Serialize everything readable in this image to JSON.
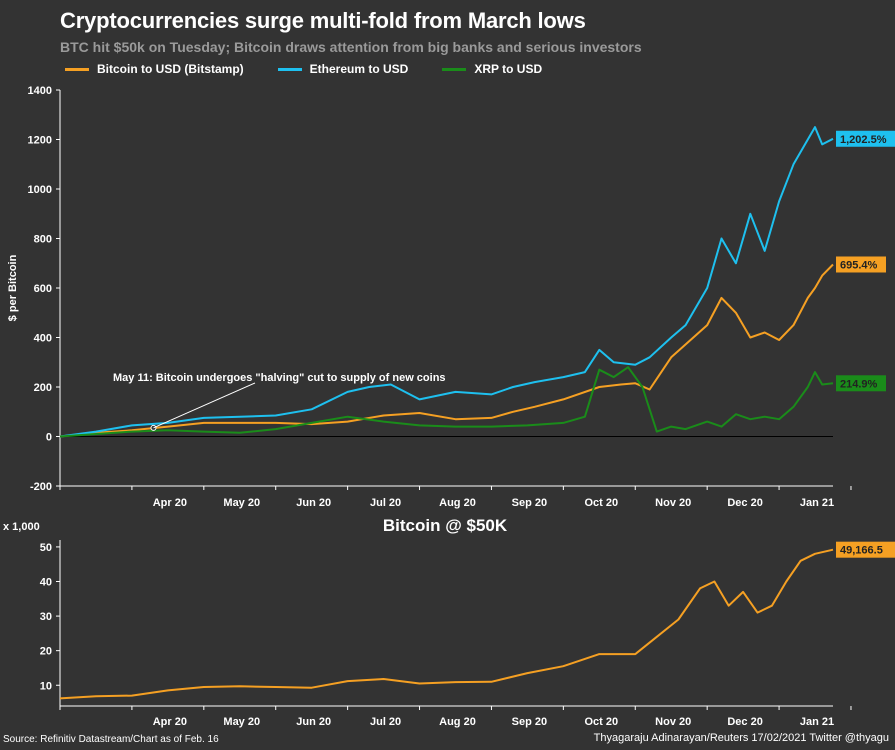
{
  "header": {
    "title": "Cryptocurrencies surge multi-fold from March lows",
    "subtitle": "BTC hit $50k on Tuesday; Bitcoin draws attention from big banks and serious investors"
  },
  "legend": [
    {
      "label": "Bitcoin to USD (Bitstamp)",
      "color": "#f5a023"
    },
    {
      "label": "Ethereum to USD",
      "color": "#1ec0ef"
    },
    {
      "label": "XRP to USD",
      "color": "#1a8c1a"
    }
  ],
  "footer": {
    "source": "Source: Refinitiv Datastream/Chart as of Feb. 16",
    "credit": "Thyagaraju Adinarayan/Reuters 17/02/2021 Twitter @thyagu"
  },
  "chart_data": [
    {
      "type": "line",
      "ylabel": "$ per Bitcoin",
      "ylim": [
        -200,
        1400
      ],
      "yticks": [
        -200,
        0,
        200,
        400,
        600,
        800,
        1000,
        1200,
        1400
      ],
      "xticks": [
        "Apr 20",
        "May 20",
        "Jun 20",
        "Jul 20",
        "Aug 20",
        "Sep 20",
        "Oct 20",
        "Nov 20",
        "Dec 20",
        "Jan 21"
      ],
      "annotation": "May 11: Bitcoin undergoes \"halving\" cut to supply of new coins",
      "series": [
        {
          "name": "Bitcoin to USD (Bitstamp)",
          "color": "#f5a023",
          "end_label": "695.4%",
          "x": [
            0,
            0.5,
            1,
            1.5,
            2,
            2.5,
            3,
            3.5,
            4,
            4.5,
            5,
            5.5,
            6,
            6.3,
            6.6,
            7,
            7.5,
            7.8,
            8,
            8.2,
            8.5,
            9,
            9.2,
            9.4,
            9.6,
            9.8,
            10,
            10.2,
            10.4,
            10.5,
            10.6,
            10.75
          ],
          "values": [
            0,
            15,
            25,
            40,
            55,
            55,
            55,
            50,
            60,
            85,
            95,
            70,
            75,
            100,
            120,
            150,
            200,
            210,
            215,
            190,
            320,
            450,
            560,
            500,
            400,
            420,
            390,
            450,
            560,
            600,
            650,
            695
          ]
        },
        {
          "name": "Ethereum to USD",
          "color": "#1ec0ef",
          "end_label": "1,202.5%",
          "x": [
            0,
            0.5,
            1,
            1.5,
            2,
            2.5,
            3,
            3.5,
            4,
            4.3,
            4.6,
            5,
            5.5,
            6,
            6.3,
            6.6,
            7,
            7.3,
            7.5,
            7.7,
            8,
            8.2,
            8.5,
            8.7,
            9,
            9.2,
            9.4,
            9.6,
            9.8,
            10,
            10.2,
            10.4,
            10.5,
            10.6,
            10.75
          ],
          "values": [
            0,
            20,
            45,
            55,
            75,
            80,
            85,
            110,
            180,
            200,
            210,
            150,
            180,
            170,
            200,
            220,
            240,
            260,
            350,
            300,
            290,
            320,
            400,
            450,
            600,
            800,
            700,
            900,
            750,
            950,
            1100,
            1200,
            1250,
            1180,
            1203
          ]
        },
        {
          "name": "XRP to USD",
          "color": "#1a8c1a",
          "end_label": "214.9%",
          "x": [
            0,
            0.5,
            1,
            1.5,
            2,
            2.5,
            3,
            3.5,
            4,
            4.5,
            5,
            5.5,
            6,
            6.5,
            7,
            7.3,
            7.5,
            7.7,
            7.9,
            8.1,
            8.3,
            8.5,
            8.7,
            9,
            9.2,
            9.4,
            9.6,
            9.8,
            10,
            10.2,
            10.4,
            10.5,
            10.6,
            10.75
          ],
          "values": [
            0,
            10,
            20,
            25,
            20,
            15,
            30,
            55,
            80,
            60,
            45,
            40,
            40,
            45,
            55,
            80,
            270,
            240,
            280,
            200,
            20,
            40,
            30,
            60,
            40,
            90,
            70,
            80,
            70,
            120,
            200,
            260,
            210,
            215
          ]
        }
      ]
    },
    {
      "type": "line",
      "title": "Bitcoin @ $50K",
      "ylabel": "x 1,000",
      "ylim": [
        4,
        52
      ],
      "yticks": [
        10,
        20,
        30,
        40,
        50
      ],
      "xticks": [
        "Apr 20",
        "May 20",
        "Jun 20",
        "Jul 20",
        "Aug 20",
        "Sep 20",
        "Oct 20",
        "Nov 20",
        "Dec 20",
        "Jan 21"
      ],
      "series": [
        {
          "name": "Bitcoin",
          "color": "#f5a023",
          "end_label": "49,166.5",
          "x": [
            0,
            0.5,
            1,
            1.5,
            2,
            2.5,
            3,
            3.5,
            4,
            4.5,
            5,
            5.5,
            6,
            6.5,
            7,
            7.5,
            8,
            8.3,
            8.6,
            8.9,
            9.1,
            9.3,
            9.5,
            9.7,
            9.9,
            10.1,
            10.3,
            10.5,
            10.75
          ],
          "values": [
            6.2,
            6.8,
            7.0,
            8.5,
            9.5,
            9.7,
            9.5,
            9.3,
            11.2,
            11.8,
            10.5,
            10.9,
            11.0,
            13.5,
            15.5,
            19.0,
            19.0,
            24.0,
            29.0,
            38.0,
            40.0,
            33.0,
            37.0,
            31.0,
            33.0,
            40.0,
            46.0,
            48.0,
            49.2
          ]
        }
      ]
    }
  ]
}
